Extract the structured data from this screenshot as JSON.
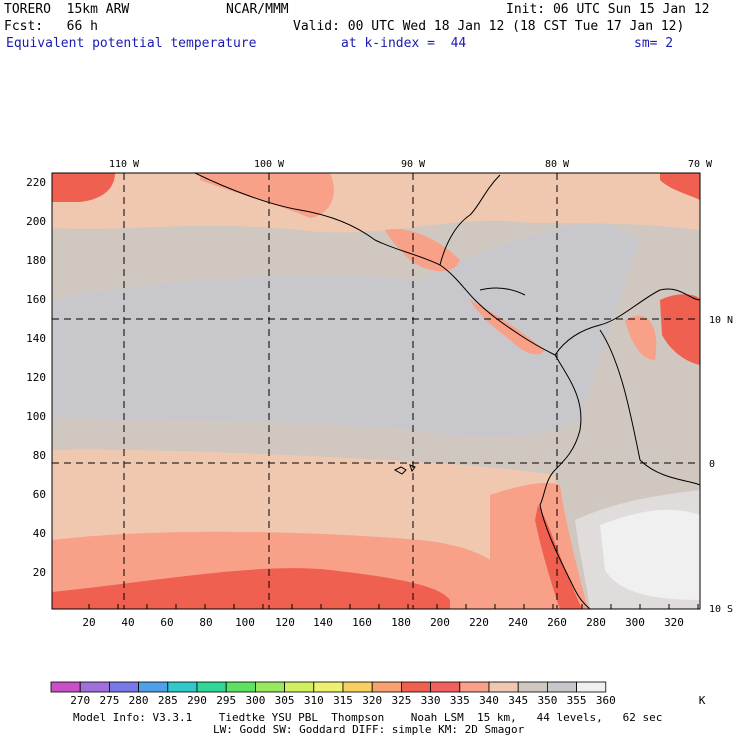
{
  "header": {
    "model": "TORERO  15km ARW",
    "org": "NCAR/MMM",
    "init": "Init: 06 UTC Sun 15 Jan 12",
    "fcst": "Fcst:   66 h",
    "valid": "Valid: 00 UTC Wed 18 Jan 12 (18 CST Tue 17 Jan 12)",
    "field": "Equivalent potential temperature",
    "level": "at k-index =  44",
    "smooth": "sm= 2"
  },
  "map": {
    "lon_labels": [
      "110 W",
      "100 W",
      "90 W",
      "80 W",
      "70 W"
    ],
    "lat_labels": [
      "10 N",
      "0",
      "10 S"
    ],
    "x_ticks": [
      "20",
      "40",
      "60",
      "80",
      "100",
      "120",
      "140",
      "160",
      "180",
      "200",
      "220",
      "240",
      "260",
      "280",
      "300",
      "320"
    ],
    "y_ticks": [
      "220",
      "200",
      "180",
      "160",
      "140",
      "120",
      "100",
      "80",
      "60",
      "40",
      "20"
    ]
  },
  "colorbar": {
    "labels": [
      "270",
      "275",
      "280",
      "285",
      "290",
      "295",
      "300",
      "305",
      "310",
      "315",
      "320",
      "325",
      "330",
      "335",
      "340",
      "345",
      "350",
      "355",
      "360"
    ],
    "unit": "K",
    "colors": [
      "#c850c8",
      "#a070d8",
      "#7878e8",
      "#4fa0e8",
      "#30c8c8",
      "#30d898",
      "#60e060",
      "#98e860",
      "#d0f060",
      "#f0f070",
      "#f8d060",
      "#f8a070",
      "#f06050",
      "#f06060",
      "#f8a088",
      "#f0c8b0",
      "#d0c8c0",
      "#c8c8cc",
      "#f0f0f0"
    ]
  },
  "footer": {
    "line1": "Model Info: V3.3.1    Tiedtke YSU PBL  Thompson    Noah LSM  15 km,   44 levels,   62 sec",
    "line2": "LW: Godd SW: Goddard DIFF: simple KM: 2D Smagor"
  }
}
